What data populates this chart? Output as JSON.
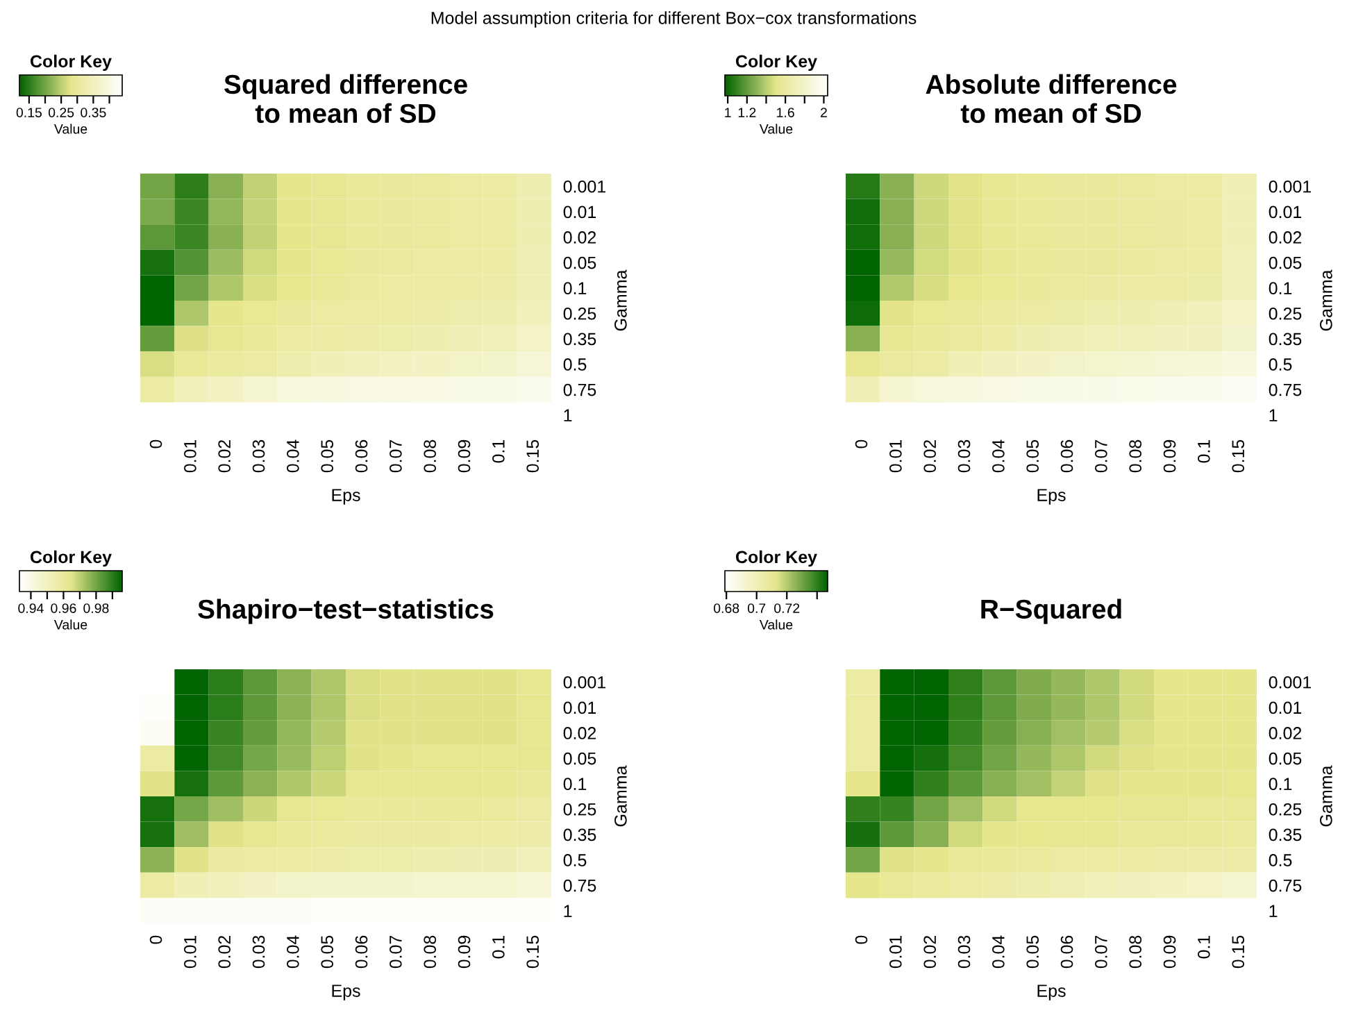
{
  "chart_data": [
    {
      "type": "heatmap",
      "title": "Squared difference\nto mean of SD",
      "xlabel": "Eps",
      "ylabel": "Gamma",
      "legend_title": "Color Key",
      "clabel": "Value",
      "annotations": [
        "Model assumption criteria for different Box−cox transformations"
      ],
      "categories": [
        "0",
        "0.01",
        "0.02",
        "0.03",
        "0.04",
        "0.05",
        "0.06",
        "0.07",
        "0.08",
        "0.09",
        "0.1",
        "0.15"
      ],
      "y_categories": [
        "0.001",
        "0.01",
        "0.02",
        "0.05",
        "0.1",
        "0.25",
        "0.35",
        "0.5",
        "0.75",
        "1"
      ],
      "colors": [
        "#006400",
        "#e6e68c",
        "#ffffff"
      ],
      "clim": [
        0.12,
        0.44
      ],
      "cticks": [
        0.15,
        {
          "value": 0.2,
          "label": null
        },
        0.25,
        {
          "value": 0.3,
          "label": null
        },
        0.35,
        {
          "value": 0.4,
          "label": null
        }
      ],
      "cells": [
        [
          0.2,
          0.152,
          0.216,
          0.254,
          0.28,
          0.29,
          0.299,
          0.302,
          0.306,
          0.309,
          0.312,
          0.331
        ],
        [
          0.206,
          0.162,
          0.222,
          0.258,
          0.28,
          0.29,
          0.299,
          0.302,
          0.306,
          0.309,
          0.312,
          0.331
        ],
        [
          0.184,
          0.162,
          0.216,
          0.254,
          0.28,
          0.29,
          0.299,
          0.302,
          0.306,
          0.309,
          0.312,
          0.331
        ],
        [
          0.136,
          0.178,
          0.229,
          0.264,
          0.283,
          0.293,
          0.302,
          0.306,
          0.309,
          0.312,
          0.315,
          0.334
        ],
        [
          0.12,
          0.2,
          0.242,
          0.27,
          0.286,
          0.296,
          0.306,
          0.309,
          0.312,
          0.315,
          0.318,
          0.334
        ],
        [
          0.12,
          0.242,
          0.28,
          0.293,
          0.302,
          0.309,
          0.315,
          0.316,
          0.318,
          0.325,
          0.331,
          0.35
        ],
        [
          0.19,
          0.274,
          0.29,
          0.299,
          0.309,
          0.315,
          0.318,
          0.322,
          0.328,
          0.338,
          0.344,
          0.36
        ],
        [
          0.27,
          0.296,
          0.306,
          0.312,
          0.325,
          0.338,
          0.35,
          0.354,
          0.357,
          0.363,
          0.366,
          0.382
        ],
        [
          0.312,
          0.344,
          0.357,
          0.376,
          0.392,
          0.395,
          0.398,
          0.4,
          0.402,
          0.408,
          0.408,
          0.414
        ],
        [
          null,
          null,
          null,
          null,
          null,
          null,
          null,
          null,
          null,
          null,
          null,
          null
        ]
      ]
    },
    {
      "type": "heatmap",
      "title": "Absolute difference\nto mean of SD",
      "xlabel": "Eps",
      "ylabel": "Gamma",
      "legend_title": "Color Key",
      "clabel": "Value",
      "categories": [
        "0",
        "0.01",
        "0.02",
        "0.03",
        "0.04",
        "0.05",
        "0.06",
        "0.07",
        "0.08",
        "0.09",
        "0.1",
        "0.15"
      ],
      "y_categories": [
        "0.001",
        "0.01",
        "0.02",
        "0.05",
        "0.1",
        "0.25",
        "0.35",
        "0.5",
        "0.75",
        "1"
      ],
      "colors": [
        "#006400",
        "#e6e68c",
        "#ffffff"
      ],
      "clim": [
        0.97,
        2.04
      ],
      "cticks": [
        1,
        1.2,
        {
          "value": 1.4,
          "label": null
        },
        1.6,
        {
          "value": 1.8,
          "label": null
        },
        2
      ],
      "cells": [
        [
          1.06,
          1.29,
          1.45,
          1.5,
          1.54,
          1.56,
          1.58,
          1.58,
          1.59,
          1.61,
          1.61,
          1.7
        ],
        [
          1.01,
          1.29,
          1.45,
          1.5,
          1.54,
          1.56,
          1.58,
          1.58,
          1.59,
          1.6,
          1.61,
          1.7
        ],
        [
          1.01,
          1.29,
          1.45,
          1.5,
          1.54,
          1.56,
          1.58,
          1.58,
          1.59,
          1.6,
          1.61,
          1.7
        ],
        [
          0.97,
          1.32,
          1.46,
          1.5,
          1.54,
          1.56,
          1.58,
          1.58,
          1.59,
          1.61,
          1.62,
          1.72
        ],
        [
          0.97,
          1.38,
          1.47,
          1.52,
          1.55,
          1.57,
          1.59,
          1.6,
          1.61,
          1.63,
          1.64,
          1.72
        ],
        [
          1.0,
          1.5,
          1.55,
          1.57,
          1.59,
          1.61,
          1.64,
          1.66,
          1.68,
          1.7,
          1.72,
          1.78
        ],
        [
          1.29,
          1.54,
          1.57,
          1.59,
          1.63,
          1.68,
          1.7,
          1.71,
          1.72,
          1.74,
          1.74,
          1.8
        ],
        [
          1.53,
          1.59,
          1.62,
          1.7,
          1.74,
          1.77,
          1.79,
          1.81,
          1.83,
          1.85,
          1.86,
          1.89
        ],
        [
          1.7,
          1.83,
          1.87,
          1.89,
          1.91,
          1.93,
          1.94,
          1.94,
          1.95,
          1.96,
          1.96,
          1.99
        ],
        [
          null,
          null,
          null,
          null,
          null,
          null,
          null,
          null,
          null,
          null,
          null,
          null
        ]
      ]
    },
    {
      "type": "heatmap",
      "title": "Shapiro−test−statistics",
      "xlabel": "Eps",
      "ylabel": "Gamma",
      "legend_title": "Color Key",
      "clabel": "Value",
      "categories": [
        "0",
        "0.01",
        "0.02",
        "0.03",
        "0.04",
        "0.05",
        "0.06",
        "0.07",
        "0.08",
        "0.09",
        "0.1",
        "0.15"
      ],
      "y_categories": [
        "0.001",
        "0.01",
        "0.02",
        "0.05",
        "0.1",
        "0.25",
        "0.35",
        "0.5",
        "0.75",
        "1"
      ],
      "colors": [
        "#ffffff",
        "#e6e68c",
        "#006400"
      ],
      "clim": [
        0.933,
        0.996
      ],
      "cticks": [
        0.94,
        {
          "value": 0.95,
          "label": null
        },
        0.96,
        {
          "value": 0.97,
          "label": null
        },
        0.98,
        {
          "value": 0.99,
          "label": null
        }
      ],
      "cells": [
        [
          0.933,
          0.996,
          0.99,
          0.983,
          0.977,
          0.972,
          0.966,
          0.965,
          0.965,
          0.965,
          0.965,
          0.963
        ],
        [
          0.934,
          0.996,
          0.99,
          0.983,
          0.977,
          0.972,
          0.966,
          0.965,
          0.965,
          0.965,
          0.965,
          0.963
        ],
        [
          0.936,
          0.996,
          0.988,
          0.982,
          0.976,
          0.971,
          0.965,
          0.965,
          0.965,
          0.965,
          0.965,
          0.963
        ],
        [
          0.958,
          0.996,
          0.987,
          0.98,
          0.975,
          0.97,
          0.965,
          0.964,
          0.963,
          0.963,
          0.963,
          0.963
        ],
        [
          0.965,
          0.993,
          0.983,
          0.977,
          0.972,
          0.968,
          0.963,
          0.963,
          0.963,
          0.963,
          0.963,
          0.961
        ],
        [
          0.993,
          0.98,
          0.974,
          0.968,
          0.963,
          0.962,
          0.961,
          0.961,
          0.961,
          0.961,
          0.96,
          0.958
        ],
        [
          0.993,
          0.974,
          0.965,
          0.963,
          0.961,
          0.96,
          0.959,
          0.959,
          0.959,
          0.958,
          0.958,
          0.957
        ],
        [
          0.977,
          0.965,
          0.959,
          0.958,
          0.958,
          0.957,
          0.956,
          0.956,
          0.955,
          0.954,
          0.954,
          0.952
        ],
        [
          0.958,
          0.953,
          0.951,
          0.949,
          0.948,
          0.947,
          0.947,
          0.947,
          0.946,
          0.946,
          0.946,
          0.944
        ],
        [
          0.935,
          0.935,
          0.935,
          0.935,
          0.935,
          0.934,
          0.934,
          0.934,
          0.934,
          0.934,
          0.934,
          0.934
        ]
      ]
    },
    {
      "type": "heatmap",
      "title": "R−Squared",
      "xlabel": "Eps",
      "ylabel": "Gamma",
      "legend_title": "Color Key",
      "clabel": "Value",
      "categories": [
        "0",
        "0.01",
        "0.02",
        "0.03",
        "0.04",
        "0.05",
        "0.06",
        "0.07",
        "0.08",
        "0.09",
        "0.1",
        "0.15"
      ],
      "y_categories": [
        "0.001",
        "0.01",
        "0.02",
        "0.05",
        "0.1",
        "0.25",
        "0.35",
        "0.5",
        "0.75",
        "1"
      ],
      "colors": [
        "#ffffff",
        "#e6e68c",
        "#006400"
      ],
      "clim": [
        0.679,
        0.747
      ],
      "cticks": [
        0.68,
        0.7,
        0.72,
        {
          "value": 0.74,
          "label": null
        }
      ],
      "cells": [
        [
          0.706,
          0.747,
          0.747,
          0.74,
          0.733,
          0.728,
          0.725,
          0.721,
          0.716,
          0.713,
          0.713,
          0.713
        ],
        [
          0.706,
          0.747,
          0.747,
          0.74,
          0.733,
          0.728,
          0.725,
          0.721,
          0.716,
          0.713,
          0.713,
          0.713
        ],
        [
          0.706,
          0.747,
          0.747,
          0.739,
          0.732,
          0.727,
          0.723,
          0.72,
          0.715,
          0.713,
          0.713,
          0.713
        ],
        [
          0.706,
          0.747,
          0.744,
          0.737,
          0.73,
          0.725,
          0.721,
          0.716,
          0.714,
          0.713,
          0.713,
          0.713
        ],
        [
          0.713,
          0.747,
          0.74,
          0.733,
          0.727,
          0.723,
          0.718,
          0.714,
          0.713,
          0.713,
          0.713,
          0.712
        ],
        [
          0.74,
          0.739,
          0.73,
          0.723,
          0.716,
          0.712,
          0.712,
          0.712,
          0.711,
          0.711,
          0.71,
          0.71
        ],
        [
          0.744,
          0.733,
          0.727,
          0.716,
          0.713,
          0.712,
          0.711,
          0.711,
          0.71,
          0.71,
          0.709,
          0.708
        ],
        [
          0.73,
          0.714,
          0.713,
          0.71,
          0.709,
          0.708,
          0.706,
          0.706,
          0.706,
          0.705,
          0.705,
          0.705
        ],
        [
          0.713,
          0.71,
          0.708,
          0.706,
          0.705,
          0.703,
          0.701,
          0.699,
          0.698,
          0.697,
          0.696,
          0.693
        ],
        [
          null,
          null,
          null,
          null,
          null,
          null,
          null,
          null,
          null,
          null,
          null,
          null
        ]
      ]
    }
  ]
}
